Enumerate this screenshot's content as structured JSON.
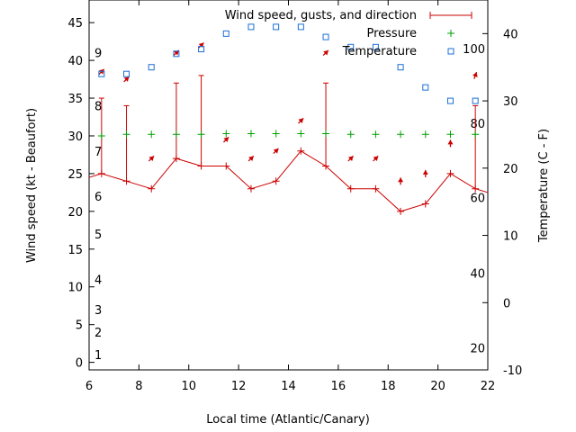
{
  "chart_data": {
    "type": "line",
    "xlabel": "Local time (Atlantic/Canary)",
    "ylabel": "Wind speed (kt - Beaufort)",
    "y2label": "Temperature (C - F)",
    "xlim": [
      6,
      22
    ],
    "ylim": [
      -1,
      48
    ],
    "y2lim": [
      -10,
      45
    ],
    "x_ticks": [
      6,
      8,
      10,
      12,
      14,
      16,
      18,
      20,
      22
    ],
    "y_ticks": [
      0,
      5,
      10,
      15,
      20,
      25,
      30,
      35,
      40,
      45
    ],
    "y2_ticks": [
      -10,
      0,
      10,
      20,
      30,
      40
    ],
    "beaufort_labels": [
      {
        "label": "1",
        "kt": 1
      },
      {
        "label": "2",
        "kt": 4
      },
      {
        "label": "3",
        "kt": 7
      },
      {
        "label": "4",
        "kt": 11
      },
      {
        "label": "5",
        "kt": 17
      },
      {
        "label": "6",
        "kt": 22
      },
      {
        "label": "7",
        "kt": 28
      },
      {
        "label": "8",
        "kt": 34
      },
      {
        "label": "9",
        "kt": 41
      }
    ],
    "fahrenheit_labels": [
      {
        "label": "20",
        "c": -6.7
      },
      {
        "label": "40",
        "c": 4.4
      },
      {
        "label": "60",
        "c": 15.6
      },
      {
        "label": "80",
        "c": 26.7
      },
      {
        "label": "100",
        "c": 37.8
      }
    ],
    "legend": {
      "position": "top-right",
      "wind": "Wind speed, gusts, and direction",
      "pressure": "Pressure",
      "temperature": "Temperature"
    },
    "colors": {
      "wind": "#cc0000",
      "pressure": "#00a000",
      "temperature": "#1a6fd6"
    },
    "series": [
      {
        "name": "Wind speed, gusts, and direction",
        "x": [
          5.5,
          6.5,
          7.5,
          8.5,
          9.5,
          10.5,
          11.5,
          12.5,
          13.5,
          14.5,
          15.5,
          16.5,
          17.5,
          18.5,
          19.5,
          20.5,
          21.5,
          22.5
        ],
        "speed": [
          24,
          25,
          24,
          23,
          27,
          26,
          26,
          23,
          24,
          28,
          26,
          23,
          23,
          20,
          21,
          25,
          23,
          22
        ],
        "gust": [
          null,
          35,
          34,
          null,
          37,
          38,
          null,
          null,
          null,
          null,
          37,
          null,
          null,
          null,
          null,
          null,
          34,
          null
        ],
        "dir_deg": [
          null,
          225,
          225,
          225,
          225,
          225,
          225,
          225,
          225,
          225,
          225,
          225,
          225,
          180,
          180,
          180,
          200,
          null
        ],
        "arrow_kt": [
          null,
          38.5,
          37.5,
          27,
          41,
          42,
          29.5,
          27,
          28,
          32,
          41,
          27,
          27,
          24,
          25,
          29,
          38,
          null
        ]
      },
      {
        "name": "Pressure",
        "x": [
          6.5,
          7.5,
          8.5,
          9.5,
          10.5,
          11.5,
          12.5,
          13.5,
          14.5,
          15.5,
          16.5,
          17.5,
          18.5,
          19.5,
          20.5,
          21.5
        ],
        "kt": [
          30,
          30.2,
          30.2,
          30.2,
          30.2,
          30.3,
          30.3,
          30.3,
          30.3,
          30.3,
          30.2,
          30.2,
          30.2,
          30.2,
          30.2,
          30.2
        ]
      },
      {
        "name": "Temperature",
        "x": [
          6.5,
          7.5,
          8.5,
          9.5,
          10.5,
          11.5,
          12.5,
          13.5,
          14.5,
          15.5,
          16.5,
          17.5,
          18.5,
          19.5,
          20.5,
          21.5
        ],
        "c": [
          34,
          34,
          35,
          37,
          37.7,
          40,
          41,
          41,
          41,
          39.5,
          38,
          38,
          35,
          32,
          30,
          30
        ]
      }
    ]
  }
}
